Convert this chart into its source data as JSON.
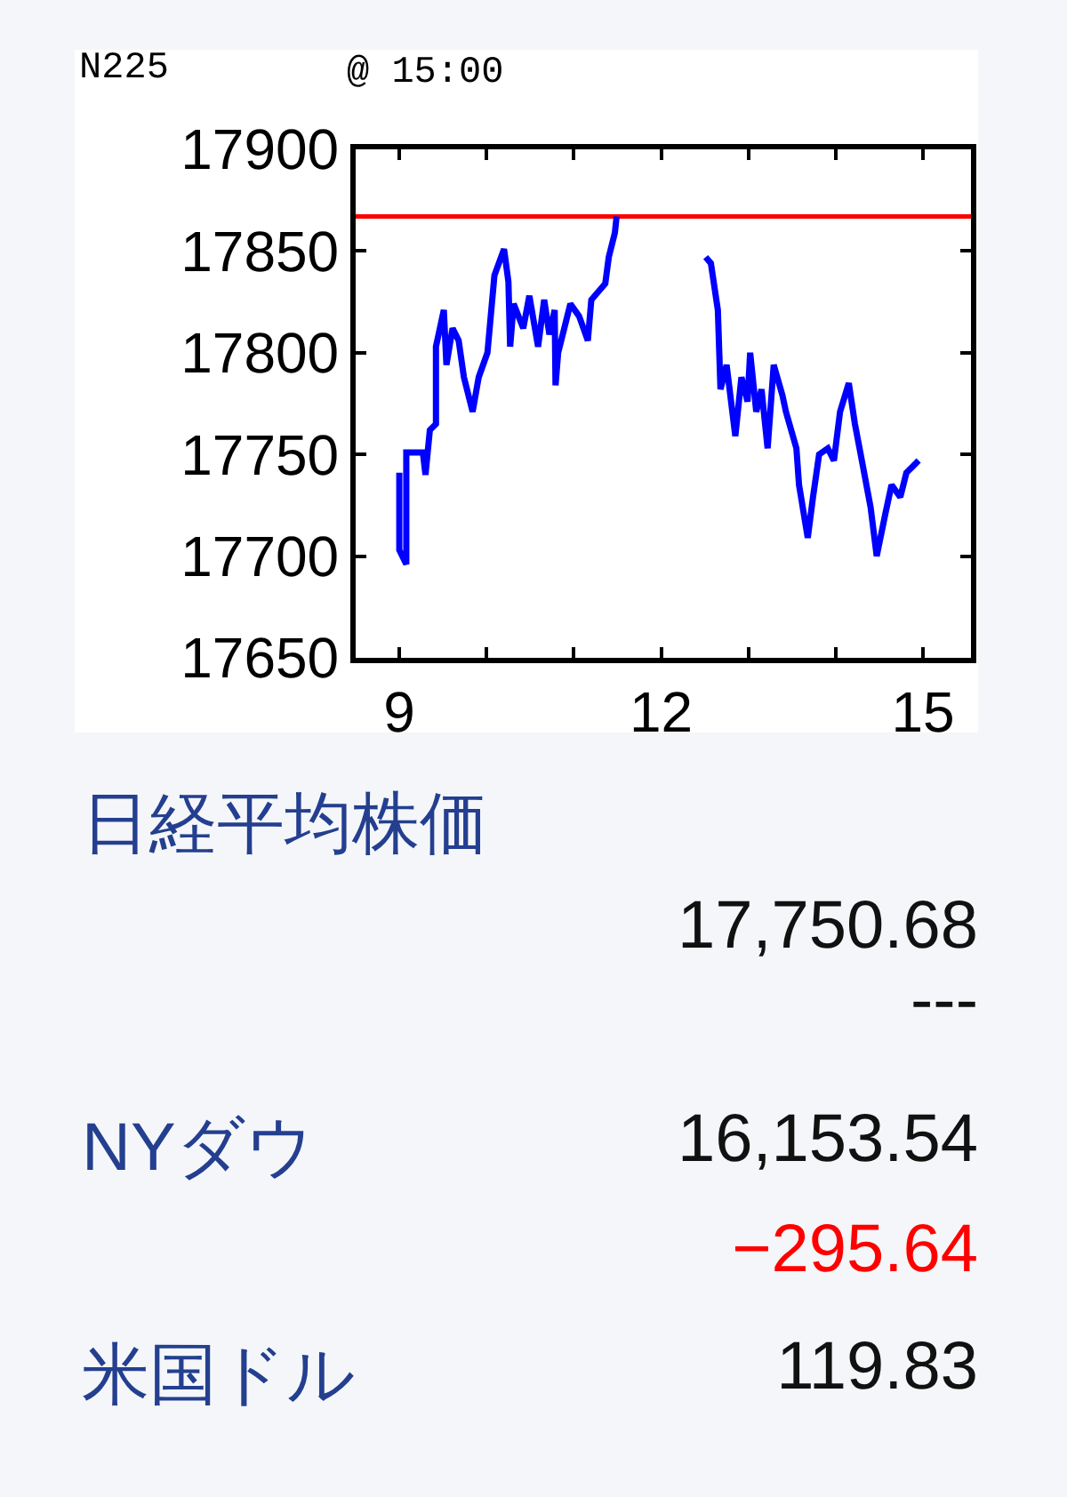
{
  "chart_data": [
    {
      "type": "line",
      "title": "N225",
      "subtitle": "@ 15:00",
      "xlim": [
        8.5,
        15.55
      ],
      "xticks": [
        9,
        {
          "value": 10,
          "label": null
        },
        {
          "value": 11,
          "label": null
        },
        12,
        {
          "value": 13,
          "label": null
        },
        {
          "value": 14,
          "label": null
        },
        15
      ],
      "ylim": [
        17650,
        17900
      ],
      "yticks": [
        17650,
        17700,
        17750,
        17800,
        17850,
        17900
      ],
      "line_style": "solid",
      "ref_lines": [
        {
          "axis": "y",
          "value": 17867,
          "color": "#ff0000"
        }
      ],
      "series": [
        {
          "color": "#0000ff",
          "x": [
            9.0,
            9.0,
            9.08,
            9.08,
            9.08,
            9.27,
            9.3,
            9.35,
            9.42,
            9.42,
            9.51,
            9.54,
            9.61,
            9.68,
            9.74,
            9.84,
            9.91,
            10.01,
            10.09,
            10.2,
            10.25,
            10.27,
            10.31,
            10.42,
            10.49,
            10.59,
            10.66,
            10.72,
            10.78,
            10.79,
            10.82,
            10.96,
            11.06,
            11.16,
            11.2,
            11.36,
            11.4,
            11.47,
            11.49,
            12.0,
            12.51,
            12.57,
            12.65,
            12.68,
            12.75,
            12.85,
            12.92,
            12.99,
            13.02,
            13.09,
            13.15,
            13.22,
            13.29,
            13.39,
            13.43,
            13.55,
            13.58,
            13.68,
            13.74,
            13.81,
            13.91,
            13.98,
            14.05,
            14.15,
            14.22,
            14.3,
            14.4,
            14.47,
            14.57,
            14.64,
            14.74,
            14.81,
            14.88,
            14.95
          ],
          "values": [
            17741,
            17703,
            17696,
            17740,
            17751,
            17751,
            17740,
            17762,
            17765,
            17803,
            17821,
            17794,
            17812,
            17806,
            17788,
            17771,
            17788,
            17800,
            17838,
            17851,
            17835,
            17803,
            17824,
            17812,
            17828,
            17803,
            17826,
            17809,
            17821,
            17784,
            17800,
            17824,
            17818,
            17806,
            17826,
            17834,
            17847,
            17859,
            17867,
            null,
            17847,
            17844,
            17821,
            17782,
            17794,
            17759,
            17788,
            17776,
            17800,
            17771,
            17782,
            17753,
            17794,
            17779,
            17771,
            17753,
            17735,
            17709,
            17729,
            17750,
            17753,
            17747,
            17771,
            17785,
            17765,
            17747,
            17724,
            17700,
            17721,
            17735,
            17729,
            17741,
            17744,
            17747
          ]
        }
      ]
    },
    {
      "type": "other",
      "annotations": [
        "日経平均株価",
        "17,750.68",
        "---",
        "NYダウ",
        "16,153.54",
        "−295.64",
        "米国ドル",
        "119.83"
      ]
    }
  ]
}
